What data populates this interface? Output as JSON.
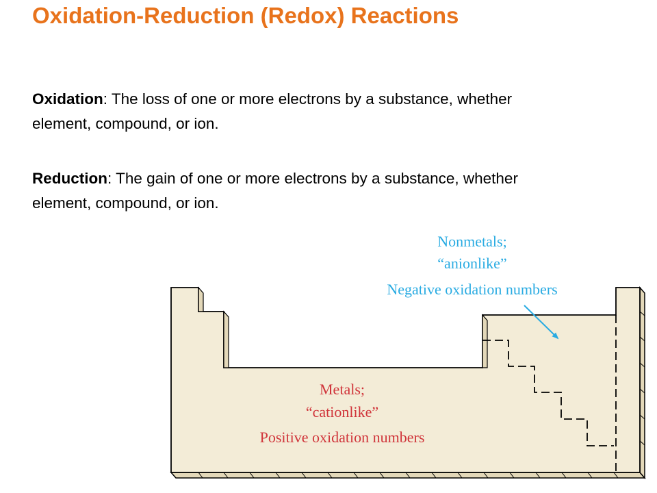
{
  "title": "Oxidation-Reduction (Redox) Reactions",
  "definitions": {
    "oxidation": {
      "term": "Oxidation",
      "text": ": The loss of one or more electrons by a substance, whether element, compound, or ion."
    },
    "reduction": {
      "term": "Reduction",
      "text": ": The gain of one or more electrons by a substance, whether element, compound, or ion."
    }
  },
  "figure": {
    "nonmetals": {
      "line1": "Nonmetals;",
      "line2": "“anionlike”",
      "line3": "Negative oxidation numbers",
      "color": "#29abe2"
    },
    "metals": {
      "line1": "Metals;",
      "line2": "“cationlike”",
      "line3": "Positive oxidation numbers",
      "color": "#d0343a"
    },
    "table_fill": "#f3ecd7"
  }
}
